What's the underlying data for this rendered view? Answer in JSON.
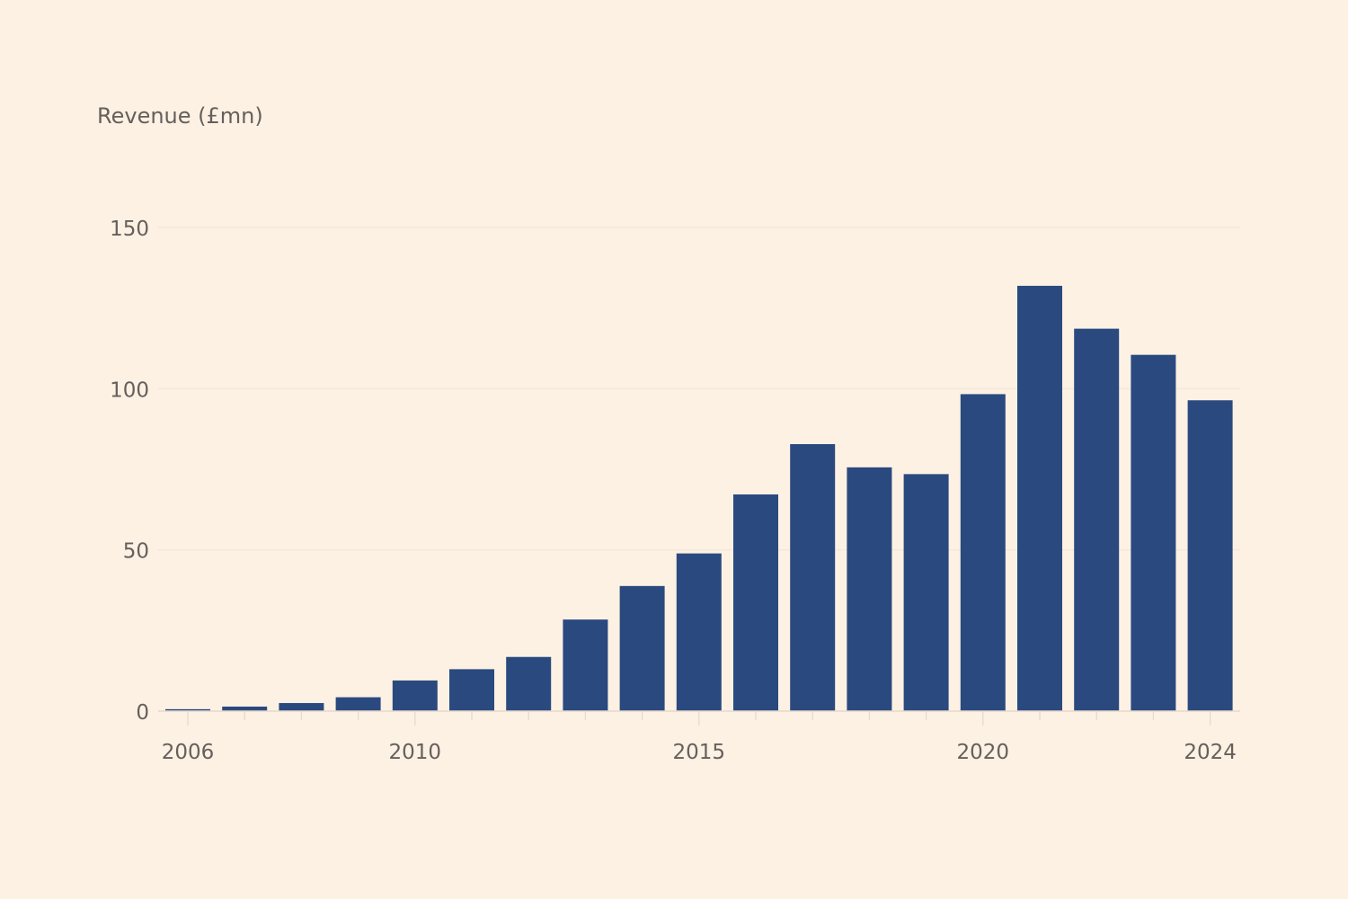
{
  "chart_data": {
    "type": "bar",
    "title": "",
    "ylabel": "Revenue (£mn)",
    "xlabel": "",
    "ylim": [
      0,
      150
    ],
    "yticks": [
      0,
      50,
      100,
      150
    ],
    "xtick_labels": [
      "2006",
      "2010",
      "2015",
      "2020",
      "2024"
    ],
    "grid": true,
    "bar_color": "#2a4a7f",
    "background_color": "#fdf1e4",
    "categories": [
      "2006",
      "2007",
      "2008",
      "2009",
      "2010",
      "2011",
      "2012",
      "2013",
      "2014",
      "2015",
      "2016",
      "2017",
      "2018",
      "2019",
      "2020",
      "2021",
      "2022",
      "2023",
      "2024"
    ],
    "values": [
      0.6,
      1.4,
      2.5,
      4.3,
      9.5,
      13.0,
      16.8,
      28.4,
      38.8,
      48.9,
      67.2,
      82.8,
      75.6,
      73.5,
      98.3,
      131.9,
      118.6,
      110.5,
      96.4
    ]
  }
}
